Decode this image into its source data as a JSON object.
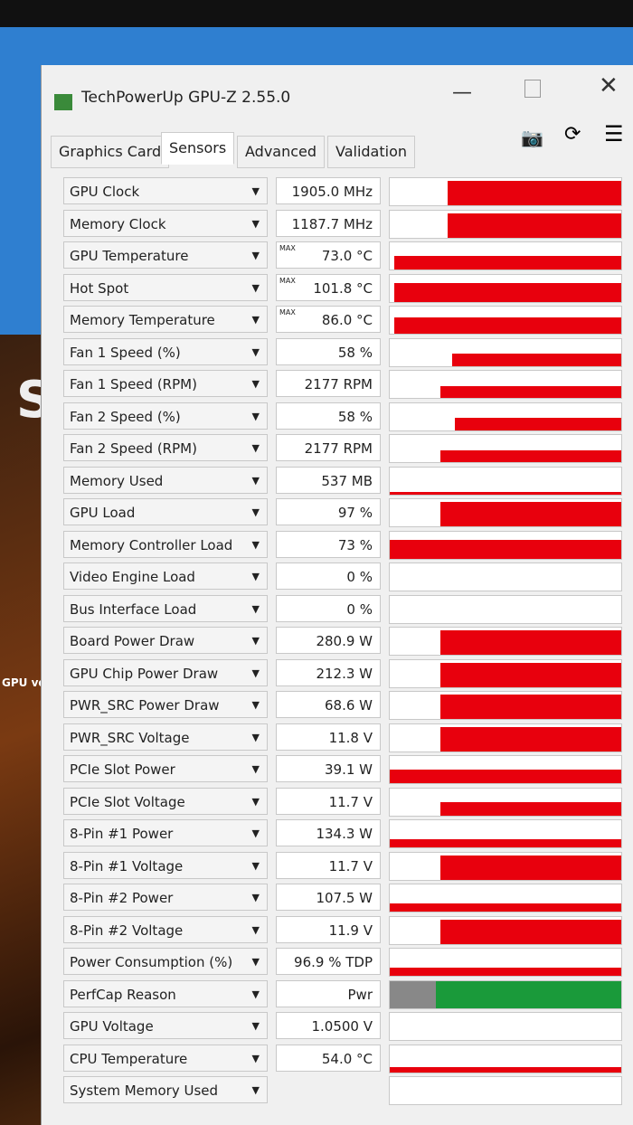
{
  "window": {
    "title": "TechPowerUp GPU-Z 2.55.0"
  },
  "tabs": [
    "Graphics Card",
    "Sensors",
    "Advanced",
    "Validation"
  ],
  "active_tab": "Sensors",
  "background": {
    "heading": "SU",
    "side_text": "GPU voltage"
  },
  "sensors": [
    {
      "label": "GPU Clock",
      "value": "1905.0 MHz"
    },
    {
      "label": "Memory Clock",
      "value": "1187.7 MHz"
    },
    {
      "label": "GPU Temperature",
      "value": "73.0 °C",
      "max": "MAX"
    },
    {
      "label": "Hot Spot",
      "value": "101.8 °C",
      "max": "MAX"
    },
    {
      "label": "Memory Temperature",
      "value": "86.0 °C",
      "max": "MAX"
    },
    {
      "label": "Fan 1 Speed (%)",
      "value": "58 %"
    },
    {
      "label": "Fan 1 Speed (RPM)",
      "value": "2177 RPM"
    },
    {
      "label": "Fan 2 Speed (%)",
      "value": "58 %"
    },
    {
      "label": "Fan 2 Speed (RPM)",
      "value": "2177 RPM"
    },
    {
      "label": "Memory Used",
      "value": "537 MB"
    },
    {
      "label": "GPU Load",
      "value": "97 %"
    },
    {
      "label": "Memory Controller Load",
      "value": "73 %"
    },
    {
      "label": "Video Engine Load",
      "value": "0 %"
    },
    {
      "label": "Bus Interface Load",
      "value": "0 %"
    },
    {
      "label": "Board Power Draw",
      "value": "280.9 W"
    },
    {
      "label": "GPU Chip Power Draw",
      "value": "212.3 W"
    },
    {
      "label": "PWR_SRC Power Draw",
      "value": "68.6 W"
    },
    {
      "label": "PWR_SRC Voltage",
      "value": "11.8 V"
    },
    {
      "label": "PCIe Slot Power",
      "value": "39.1 W"
    },
    {
      "label": "PCIe Slot Voltage",
      "value": "11.7 V"
    },
    {
      "label": "8-Pin #1 Power",
      "value": "134.3 W"
    },
    {
      "label": "8-Pin #1 Voltage",
      "value": "11.7 V"
    },
    {
      "label": "8-Pin #2 Power",
      "value": "107.5 W"
    },
    {
      "label": "8-Pin #2 Voltage",
      "value": "11.9 V"
    },
    {
      "label": "Power Consumption (%)",
      "value": "96.9 % TDP"
    },
    {
      "label": "PerfCap Reason",
      "value": "Pwr"
    },
    {
      "label": "GPU Voltage",
      "value": "1.0500 V"
    },
    {
      "label": "CPU Temperature",
      "value": "54.0 °C"
    },
    {
      "label": "System Memory Used"
    }
  ]
}
